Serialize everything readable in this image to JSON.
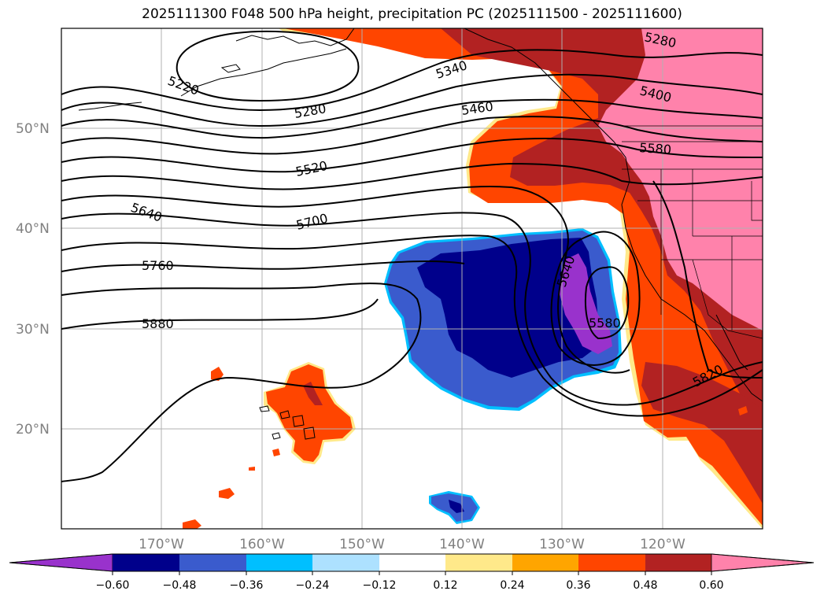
{
  "title": "2025111300 F048 500 hPa height, precipitation PC (2025111500 - 2025111600)",
  "colors": {
    "purple": "#9932CC",
    "navy": "#00008B",
    "royal": "#3A5BCD",
    "sky": "#00BFFF",
    "lightsky": "#ADE1FF",
    "white": "#FFFFFF",
    "yellow": "#FFE98A",
    "orange": "#FFA500",
    "redorange": "#FF4500",
    "firebrick": "#B22222",
    "pink": "#FF82AB"
  },
  "lat_labels": [
    "50°N",
    "40°N",
    "30°N",
    "20°N"
  ],
  "lon_labels": [
    "170°W",
    "160°W",
    "150°W",
    "140°W",
    "130°W",
    "120°W"
  ],
  "contour_labels": [
    "5220",
    "5340",
    "5280",
    "5280",
    "5460",
    "5400",
    "5520",
    "5580",
    "5640",
    "5700",
    "5760",
    "5640",
    "5880",
    "5580",
    "5820"
  ],
  "colorbar_labels": [
    "−0.60",
    "−0.48",
    "−0.36",
    "−0.24",
    "−0.12",
    "0.12",
    "0.24",
    "0.36",
    "0.48",
    "0.60"
  ]
}
